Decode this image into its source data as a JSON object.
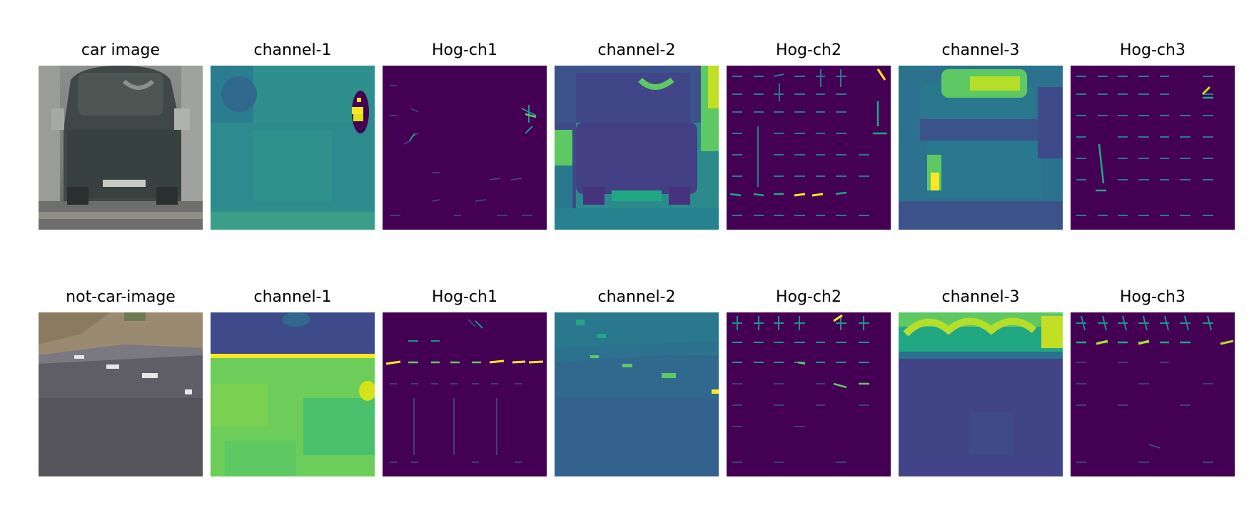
{
  "rows": [
    {
      "titles": [
        "car image",
        "channel-1",
        "Hog-ch1",
        "channel-2",
        "Hog-ch2",
        "channel-3",
        "Hog-ch3"
      ]
    },
    {
      "titles": [
        "not-car-image",
        "channel-1",
        "Hog-ch1",
        "channel-2",
        "Hog-ch2",
        "channel-3",
        "Hog-ch3"
      ]
    }
  ],
  "colors": {
    "viridis_dark": "#440154",
    "viridis_blue": "#3b528b",
    "viridis_teal": "#21918c",
    "viridis_green": "#5ec962",
    "viridis_yellow": "#fde725",
    "photo_gray": "#6b6f70",
    "road_gray": "#5b5a62"
  }
}
